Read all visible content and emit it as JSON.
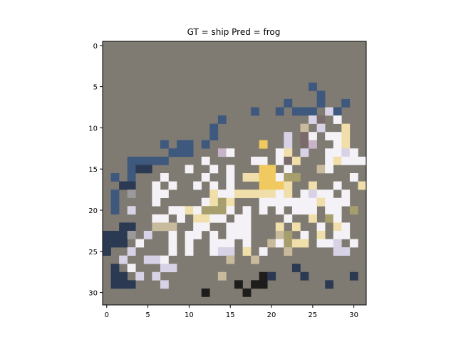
{
  "chart_data": {
    "type": "heatmap",
    "title": "GT = ship Pred = frog",
    "image_size": [
      32,
      32
    ],
    "xlim": [
      -0.5,
      31.5
    ],
    "ylim": [
      31.5,
      -0.5
    ],
    "x_ticks": [
      0,
      5,
      10,
      15,
      20,
      25,
      30
    ],
    "y_ticks": [
      0,
      5,
      10,
      15,
      20,
      25,
      30
    ],
    "background_color": "#7f7b72",
    "palette": {
      "b": "#3f587e",
      "d": "#2b3a52",
      "w": "#f4f2f6",
      "l": "#d8d2e6",
      "y": "#f0c960",
      "c": "#f0dfaa",
      "k": "#1f1c1c",
      "t": "#c8ba9c",
      "o": "#a69e6c",
      "m": "#7a6a6a",
      "g": "#9a9a9a",
      "p": "#c8b4c8"
    },
    "pixels": [
      {
        "x": 25,
        "y": 5,
        "c": "b"
      },
      {
        "x": 26,
        "y": 6,
        "c": "b"
      },
      {
        "x": 26,
        "y": 7,
        "c": "b"
      },
      {
        "x": 22,
        "y": 7,
        "c": "b"
      },
      {
        "x": 29,
        "y": 7,
        "c": "b"
      },
      {
        "x": 18,
        "y": 8,
        "c": "b"
      },
      {
        "x": 21,
        "y": 8,
        "c": "b"
      },
      {
        "x": 23,
        "y": 8,
        "c": "b"
      },
      {
        "x": 24,
        "y": 8,
        "c": "b"
      },
      {
        "x": 25,
        "y": 8,
        "c": "b"
      },
      {
        "x": 27,
        "y": 8,
        "c": "l"
      },
      {
        "x": 28,
        "y": 8,
        "c": "b"
      },
      {
        "x": 14,
        "y": 9,
        "c": "b"
      },
      {
        "x": 25,
        "y": 9,
        "c": "l"
      },
      {
        "x": 26,
        "y": 9,
        "c": "m"
      },
      {
        "x": 28,
        "y": 9,
        "c": "w"
      },
      {
        "x": 13,
        "y": 10,
        "c": "b"
      },
      {
        "x": 24,
        "y": 10,
        "c": "t"
      },
      {
        "x": 26,
        "y": 10,
        "c": "l"
      },
      {
        "x": 29,
        "y": 10,
        "c": "c"
      },
      {
        "x": 13,
        "y": 11,
        "c": "b"
      },
      {
        "x": 22,
        "y": 11,
        "c": "l"
      },
      {
        "x": 24,
        "y": 11,
        "c": "m"
      },
      {
        "x": 25,
        "y": 11,
        "c": "w"
      },
      {
        "x": 27,
        "y": 11,
        "c": "w"
      },
      {
        "x": 28,
        "y": 11,
        "c": "w"
      },
      {
        "x": 29,
        "y": 11,
        "c": "c"
      },
      {
        "x": 7,
        "y": 12,
        "c": "b"
      },
      {
        "x": 9,
        "y": 12,
        "c": "b"
      },
      {
        "x": 10,
        "y": 12,
        "c": "b"
      },
      {
        "x": 12,
        "y": 12,
        "c": "b"
      },
      {
        "x": 19,
        "y": 12,
        "c": "y"
      },
      {
        "x": 22,
        "y": 12,
        "c": "l"
      },
      {
        "x": 24,
        "y": 12,
        "c": "m"
      },
      {
        "x": 25,
        "y": 12,
        "c": "p"
      },
      {
        "x": 28,
        "y": 12,
        "c": "w"
      },
      {
        "x": 29,
        "y": 12,
        "c": "c"
      },
      {
        "x": 8,
        "y": 13,
        "c": "b"
      },
      {
        "x": 9,
        "y": 13,
        "c": "b"
      },
      {
        "x": 10,
        "y": 13,
        "c": "b"
      },
      {
        "x": 14,
        "y": 13,
        "c": "p"
      },
      {
        "x": 15,
        "y": 13,
        "c": "w"
      },
      {
        "x": 21,
        "y": 13,
        "c": "w"
      },
      {
        "x": 22,
        "y": 13,
        "c": "c"
      },
      {
        "x": 24,
        "y": 13,
        "c": "l"
      },
      {
        "x": 27,
        "y": 13,
        "c": "w"
      },
      {
        "x": 28,
        "y": 13,
        "c": "w"
      },
      {
        "x": 29,
        "y": 13,
        "c": "l"
      },
      {
        "x": 30,
        "y": 13,
        "c": "w"
      },
      {
        "x": 3,
        "y": 14,
        "c": "b"
      },
      {
        "x": 4,
        "y": 14,
        "c": "b"
      },
      {
        "x": 5,
        "y": 14,
        "c": "b"
      },
      {
        "x": 6,
        "y": 14,
        "c": "b"
      },
      {
        "x": 7,
        "y": 14,
        "c": "b"
      },
      {
        "x": 12,
        "y": 14,
        "c": "w"
      },
      {
        "x": 18,
        "y": 14,
        "c": "w"
      },
      {
        "x": 19,
        "y": 14,
        "c": "w"
      },
      {
        "x": 21,
        "y": 14,
        "c": "w"
      },
      {
        "x": 22,
        "y": 14,
        "c": "m"
      },
      {
        "x": 23,
        "y": 14,
        "c": "c"
      },
      {
        "x": 27,
        "y": 14,
        "c": "w"
      },
      {
        "x": 28,
        "y": 14,
        "c": "c"
      },
      {
        "x": 29,
        "y": 14,
        "c": "w"
      },
      {
        "x": 30,
        "y": 14,
        "c": "w"
      },
      {
        "x": 31,
        "y": 14,
        "c": "w"
      },
      {
        "x": 3,
        "y": 15,
        "c": "b"
      },
      {
        "x": 4,
        "y": 15,
        "c": "d"
      },
      {
        "x": 5,
        "y": 15,
        "c": "d"
      },
      {
        "x": 10,
        "y": 15,
        "c": "w"
      },
      {
        "x": 13,
        "y": 15,
        "c": "w"
      },
      {
        "x": 15,
        "y": 15,
        "c": "w"
      },
      {
        "x": 19,
        "y": 15,
        "c": "y"
      },
      {
        "x": 20,
        "y": 15,
        "c": "y"
      },
      {
        "x": 22,
        "y": 15,
        "c": "w"
      },
      {
        "x": 26,
        "y": 15,
        "c": "t"
      },
      {
        "x": 27,
        "y": 15,
        "c": "w"
      },
      {
        "x": 1,
        "y": 16,
        "c": "b"
      },
      {
        "x": 3,
        "y": 16,
        "c": "b"
      },
      {
        "x": 7,
        "y": 16,
        "c": "w"
      },
      {
        "x": 12,
        "y": 16,
        "c": "w"
      },
      {
        "x": 15,
        "y": 16,
        "c": "w"
      },
      {
        "x": 17,
        "y": 16,
        "c": "c"
      },
      {
        "x": 18,
        "y": 16,
        "c": "c"
      },
      {
        "x": 19,
        "y": 16,
        "c": "y"
      },
      {
        "x": 20,
        "y": 16,
        "c": "y"
      },
      {
        "x": 21,
        "y": 16,
        "c": "w"
      },
      {
        "x": 22,
        "y": 16,
        "c": "o"
      },
      {
        "x": 23,
        "y": 16,
        "c": "o"
      },
      {
        "x": 30,
        "y": 16,
        "c": "w"
      },
      {
        "x": 2,
        "y": 17,
        "c": "d"
      },
      {
        "x": 3,
        "y": 17,
        "c": "d"
      },
      {
        "x": 6,
        "y": 17,
        "c": "w"
      },
      {
        "x": 8,
        "y": 17,
        "c": "w"
      },
      {
        "x": 11,
        "y": 17,
        "c": "w"
      },
      {
        "x": 13,
        "y": 17,
        "c": "w"
      },
      {
        "x": 15,
        "y": 17,
        "c": "w"
      },
      {
        "x": 19,
        "y": 17,
        "c": "y"
      },
      {
        "x": 20,
        "y": 17,
        "c": "y"
      },
      {
        "x": 21,
        "y": 17,
        "c": "y"
      },
      {
        "x": 22,
        "y": 17,
        "c": "c"
      },
      {
        "x": 25,
        "y": 17,
        "c": "c"
      },
      {
        "x": 28,
        "y": 17,
        "c": "w"
      },
      {
        "x": 31,
        "y": 17,
        "c": "c"
      },
      {
        "x": 1,
        "y": 18,
        "c": "b"
      },
      {
        "x": 3,
        "y": 18,
        "c": "g"
      },
      {
        "x": 6,
        "y": 18,
        "c": "w"
      },
      {
        "x": 7,
        "y": 18,
        "c": "w"
      },
      {
        "x": 13,
        "y": 18,
        "c": "c"
      },
      {
        "x": 14,
        "y": 18,
        "c": "w"
      },
      {
        "x": 15,
        "y": 18,
        "c": "w"
      },
      {
        "x": 16,
        "y": 18,
        "c": "c"
      },
      {
        "x": 17,
        "y": 18,
        "c": "c"
      },
      {
        "x": 18,
        "y": 18,
        "c": "c"
      },
      {
        "x": 19,
        "y": 18,
        "c": "c"
      },
      {
        "x": 20,
        "y": 18,
        "c": "c"
      },
      {
        "x": 21,
        "y": 18,
        "c": "w"
      },
      {
        "x": 22,
        "y": 18,
        "c": "c"
      },
      {
        "x": 24,
        "y": 18,
        "c": "w"
      },
      {
        "x": 25,
        "y": 18,
        "c": "l"
      },
      {
        "x": 26,
        "y": 18,
        "c": "w"
      },
      {
        "x": 27,
        "y": 18,
        "c": "w"
      },
      {
        "x": 29,
        "y": 18,
        "c": "w"
      },
      {
        "x": 1,
        "y": 19,
        "c": "b"
      },
      {
        "x": 6,
        "y": 19,
        "c": "w"
      },
      {
        "x": 12,
        "y": 19,
        "c": "w"
      },
      {
        "x": 13,
        "y": 19,
        "c": "c"
      },
      {
        "x": 14,
        "y": 19,
        "c": "o"
      },
      {
        "x": 15,
        "y": 19,
        "c": "c"
      },
      {
        "x": 19,
        "y": 19,
        "c": "w"
      },
      {
        "x": 20,
        "y": 19,
        "c": "w"
      },
      {
        "x": 21,
        "y": 19,
        "c": "w"
      },
      {
        "x": 22,
        "y": 19,
        "c": "w"
      },
      {
        "x": 23,
        "y": 19,
        "c": "w"
      },
      {
        "x": 24,
        "y": 19,
        "c": "w"
      },
      {
        "x": 25,
        "y": 19,
        "c": "w"
      },
      {
        "x": 26,
        "y": 19,
        "c": "c"
      },
      {
        "x": 27,
        "y": 19,
        "c": "w"
      },
      {
        "x": 28,
        "y": 19,
        "c": "w"
      },
      {
        "x": 29,
        "y": 19,
        "c": "w"
      },
      {
        "x": 1,
        "y": 20,
        "c": "b"
      },
      {
        "x": 3,
        "y": 20,
        "c": "l"
      },
      {
        "x": 8,
        "y": 20,
        "c": "w"
      },
      {
        "x": 9,
        "y": 20,
        "c": "w"
      },
      {
        "x": 10,
        "y": 20,
        "c": "c"
      },
      {
        "x": 11,
        "y": 20,
        "c": "w"
      },
      {
        "x": 12,
        "y": 20,
        "c": "o"
      },
      {
        "x": 13,
        "y": 20,
        "c": "o"
      },
      {
        "x": 14,
        "y": 20,
        "c": "o"
      },
      {
        "x": 15,
        "y": 20,
        "c": "w"
      },
      {
        "x": 17,
        "y": 20,
        "c": "w"
      },
      {
        "x": 19,
        "y": 20,
        "c": "w"
      },
      {
        "x": 21,
        "y": 20,
        "c": "w"
      },
      {
        "x": 23,
        "y": 20,
        "c": "w"
      },
      {
        "x": 24,
        "y": 20,
        "c": "w"
      },
      {
        "x": 25,
        "y": 20,
        "c": "w"
      },
      {
        "x": 27,
        "y": 20,
        "c": "w"
      },
      {
        "x": 28,
        "y": 20,
        "c": "w"
      },
      {
        "x": 30,
        "y": 20,
        "c": "o"
      },
      {
        "x": 6,
        "y": 21,
        "c": "w"
      },
      {
        "x": 7,
        "y": 21,
        "c": "w"
      },
      {
        "x": 9,
        "y": 21,
        "c": "w"
      },
      {
        "x": 11,
        "y": 21,
        "c": "c"
      },
      {
        "x": 12,
        "y": 21,
        "c": "c"
      },
      {
        "x": 13,
        "y": 21,
        "c": "w"
      },
      {
        "x": 14,
        "y": 21,
        "c": "w"
      },
      {
        "x": 16,
        "y": 21,
        "c": "w"
      },
      {
        "x": 17,
        "y": 21,
        "c": "w"
      },
      {
        "x": 22,
        "y": 21,
        "c": "w"
      },
      {
        "x": 25,
        "y": 21,
        "c": "c"
      },
      {
        "x": 27,
        "y": 21,
        "c": "o"
      },
      {
        "x": 28,
        "y": 21,
        "c": "w"
      },
      {
        "x": 2,
        "y": 22,
        "c": "d"
      },
      {
        "x": 3,
        "y": 22,
        "c": "d"
      },
      {
        "x": 6,
        "y": 22,
        "c": "t"
      },
      {
        "x": 7,
        "y": 22,
        "c": "t"
      },
      {
        "x": 8,
        "y": 22,
        "c": "t"
      },
      {
        "x": 11,
        "y": 22,
        "c": "w"
      },
      {
        "x": 12,
        "y": 22,
        "c": "w"
      },
      {
        "x": 15,
        "y": 22,
        "c": "w"
      },
      {
        "x": 16,
        "y": 22,
        "c": "w"
      },
      {
        "x": 17,
        "y": 22,
        "c": "w"
      },
      {
        "x": 21,
        "y": 22,
        "c": "c"
      },
      {
        "x": 23,
        "y": 22,
        "c": "c"
      },
      {
        "x": 26,
        "y": 22,
        "c": "w"
      },
      {
        "x": 28,
        "y": 22,
        "c": "c"
      },
      {
        "x": 29,
        "y": 22,
        "c": "w"
      },
      {
        "x": 0,
        "y": 23,
        "c": "d"
      },
      {
        "x": 1,
        "y": 23,
        "c": "d"
      },
      {
        "x": 2,
        "y": 23,
        "c": "d"
      },
      {
        "x": 3,
        "y": 23,
        "c": "g"
      },
      {
        "x": 5,
        "y": 23,
        "c": "l"
      },
      {
        "x": 8,
        "y": 23,
        "c": "w"
      },
      {
        "x": 10,
        "y": 23,
        "c": "w"
      },
      {
        "x": 11,
        "y": 23,
        "c": "w"
      },
      {
        "x": 13,
        "y": 23,
        "c": "w"
      },
      {
        "x": 15,
        "y": 23,
        "c": "w"
      },
      {
        "x": 16,
        "y": 23,
        "c": "w"
      },
      {
        "x": 17,
        "y": 23,
        "c": "w"
      },
      {
        "x": 21,
        "y": 23,
        "c": "t"
      },
      {
        "x": 22,
        "y": 23,
        "c": "o"
      },
      {
        "x": 24,
        "y": 23,
        "c": "w"
      },
      {
        "x": 26,
        "y": 23,
        "c": "c"
      },
      {
        "x": 28,
        "y": 23,
        "c": "w"
      },
      {
        "x": 29,
        "y": 23,
        "c": "w"
      },
      {
        "x": 0,
        "y": 24,
        "c": "d"
      },
      {
        "x": 1,
        "y": 24,
        "c": "d"
      },
      {
        "x": 2,
        "y": 24,
        "c": "d"
      },
      {
        "x": 4,
        "y": 24,
        "c": "w"
      },
      {
        "x": 8,
        "y": 24,
        "c": "w"
      },
      {
        "x": 10,
        "y": 24,
        "c": "w"
      },
      {
        "x": 13,
        "y": 24,
        "c": "w"
      },
      {
        "x": 14,
        "y": 24,
        "c": "w"
      },
      {
        "x": 15,
        "y": 24,
        "c": "w"
      },
      {
        "x": 17,
        "y": 24,
        "c": "w"
      },
      {
        "x": 20,
        "y": 24,
        "c": "t"
      },
      {
        "x": 21,
        "y": 24,
        "c": "w"
      },
      {
        "x": 22,
        "y": 24,
        "c": "o"
      },
      {
        "x": 23,
        "y": 24,
        "c": "c"
      },
      {
        "x": 24,
        "y": 24,
        "c": "c"
      },
      {
        "x": 26,
        "y": 24,
        "c": "w"
      },
      {
        "x": 27,
        "y": 24,
        "c": "w"
      },
      {
        "x": 28,
        "y": 24,
        "c": "l"
      },
      {
        "x": 30,
        "y": 24,
        "c": "w"
      },
      {
        "x": 0,
        "y": 25,
        "c": "d"
      },
      {
        "x": 3,
        "y": 25,
        "c": "l"
      },
      {
        "x": 8,
        "y": 25,
        "c": "w"
      },
      {
        "x": 10,
        "y": 25,
        "c": "w"
      },
      {
        "x": 13,
        "y": 25,
        "c": "w"
      },
      {
        "x": 14,
        "y": 25,
        "c": "l"
      },
      {
        "x": 15,
        "y": 25,
        "c": "l"
      },
      {
        "x": 17,
        "y": 25,
        "c": "c"
      },
      {
        "x": 19,
        "y": 25,
        "c": "w"
      },
      {
        "x": 22,
        "y": 25,
        "c": "t"
      },
      {
        "x": 28,
        "y": 25,
        "c": "l"
      },
      {
        "x": 29,
        "y": 25,
        "c": "l"
      },
      {
        "x": 2,
        "y": 26,
        "c": "l"
      },
      {
        "x": 5,
        "y": 26,
        "c": "l"
      },
      {
        "x": 6,
        "y": 26,
        "c": "l"
      },
      {
        "x": 7,
        "y": 26,
        "c": "w"
      },
      {
        "x": 15,
        "y": 26,
        "c": "t"
      },
      {
        "x": 18,
        "y": 26,
        "c": "t"
      },
      {
        "x": 1,
        "y": 27,
        "c": "d"
      },
      {
        "x": 3,
        "y": 27,
        "c": "w"
      },
      {
        "x": 7,
        "y": 27,
        "c": "l"
      },
      {
        "x": 8,
        "y": 27,
        "c": "l"
      },
      {
        "x": 23,
        "y": 27,
        "c": "d"
      },
      {
        "x": 1,
        "y": 28,
        "c": "d"
      },
      {
        "x": 2,
        "y": 28,
        "c": "d"
      },
      {
        "x": 4,
        "y": 28,
        "c": "l"
      },
      {
        "x": 6,
        "y": 28,
        "c": "l"
      },
      {
        "x": 14,
        "y": 28,
        "c": "t"
      },
      {
        "x": 19,
        "y": 28,
        "c": "k"
      },
      {
        "x": 20,
        "y": 28,
        "c": "d"
      },
      {
        "x": 24,
        "y": 28,
        "c": "d"
      },
      {
        "x": 30,
        "y": 28,
        "c": "d"
      },
      {
        "x": 1,
        "y": 29,
        "c": "d"
      },
      {
        "x": 2,
        "y": 29,
        "c": "d"
      },
      {
        "x": 3,
        "y": 29,
        "c": "d"
      },
      {
        "x": 7,
        "y": 29,
        "c": "l"
      },
      {
        "x": 16,
        "y": 29,
        "c": "k"
      },
      {
        "x": 18,
        "y": 29,
        "c": "k"
      },
      {
        "x": 19,
        "y": 29,
        "c": "k"
      },
      {
        "x": 27,
        "y": 29,
        "c": "d"
      },
      {
        "x": 12,
        "y": 30,
        "c": "k"
      },
      {
        "x": 17,
        "y": 30,
        "c": "k"
      }
    ]
  }
}
